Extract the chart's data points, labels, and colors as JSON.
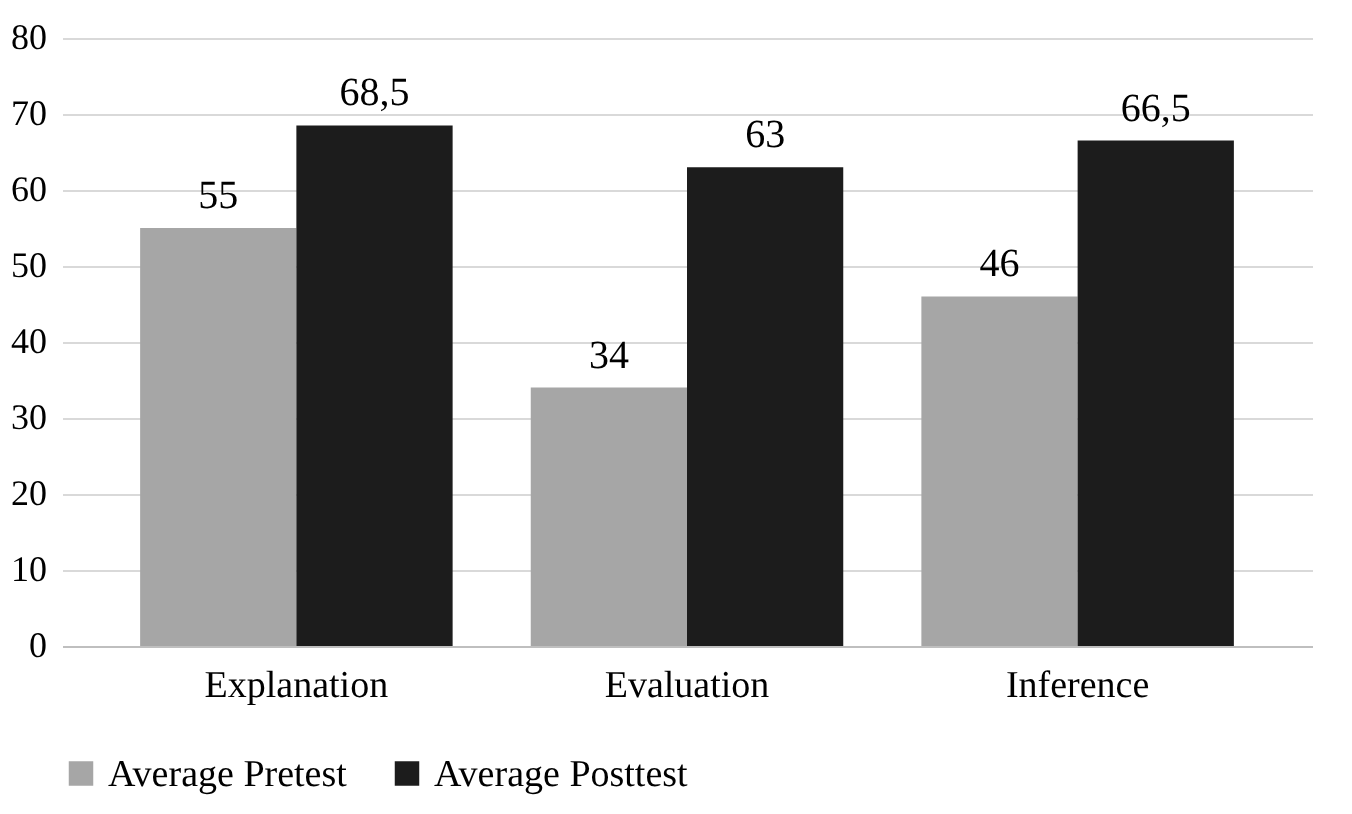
{
  "chart_data": {
    "type": "bar",
    "categories": [
      "Explanation",
      "Evaluation",
      "Inference"
    ],
    "series": [
      {
        "name": "Average Pretest",
        "color": "#a6a6a6",
        "values": [
          55,
          34,
          46
        ],
        "value_labels": [
          "55",
          "34",
          "46"
        ]
      },
      {
        "name": "Average Posttest",
        "color": "#1c1c1c",
        "values": [
          68.5,
          63,
          66.5
        ],
        "value_labels": [
          "68,5",
          "63",
          "66,5"
        ]
      }
    ],
    "ylim": [
      0,
      80
    ],
    "yticks": [
      0,
      10,
      20,
      30,
      40,
      50,
      60,
      70,
      80
    ],
    "grid": "y",
    "legend": "bottom"
  }
}
